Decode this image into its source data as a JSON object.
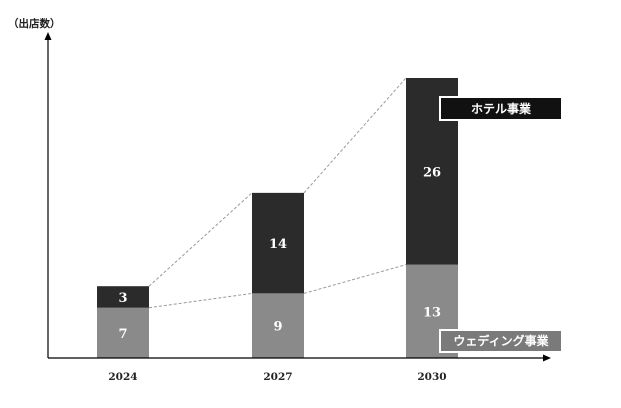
{
  "chart_data": {
    "type": "bar",
    "stacked": true,
    "categories": [
      "2024",
      "2027",
      "2030"
    ],
    "series": [
      {
        "name": "ウェディング事業",
        "values": [
          7,
          9,
          13
        ],
        "color": "#8a8a8a"
      },
      {
        "name": "ホテル事業",
        "values": [
          3,
          14,
          26
        ],
        "color": "#2b2b2b"
      }
    ],
    "ylabel": "（出店数）",
    "xlabel": "",
    "title": "",
    "ylim": [
      0,
      44
    ],
    "grid": false,
    "legend": "inline-right",
    "connector_lines": true
  }
}
